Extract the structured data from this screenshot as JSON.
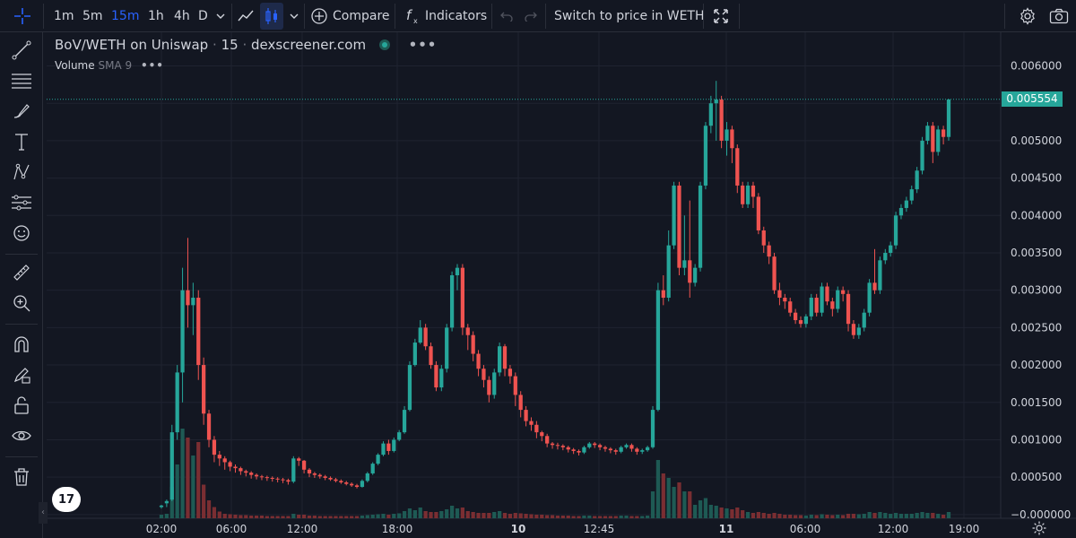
{
  "toolbar": {
    "intervals": [
      "1m",
      "5m",
      "15m",
      "1h",
      "4h",
      "D"
    ],
    "active_interval": "15m",
    "compare_label": "Compare",
    "indicators_label": "Indicators",
    "switch_label": "Switch to price in WETH"
  },
  "legend": {
    "symbol": "BoV/WETH on Uniswap",
    "interval": "15",
    "source": "dexscreener.com",
    "status_color": "#26a69a",
    "volume_label": "Volume",
    "volume_sma": "SMA 9"
  },
  "price_axis": {
    "ticks": [
      "0.006000",
      "0.005500",
      "0.005000",
      "0.004500",
      "0.004000",
      "0.003500",
      "0.003000",
      "0.002500",
      "0.002000",
      "0.001500",
      "0.001000",
      "0.000500",
      "−0.000000"
    ],
    "last_price": "0.005554",
    "last_price_color": "#26a69a"
  },
  "time_axis": {
    "labels": [
      "02:00",
      "06:00",
      "12:00",
      "18:00",
      "10",
      "12:45",
      "11",
      "06:00",
      "12:00",
      "19:00"
    ],
    "bold_labels": [
      "10",
      "11"
    ]
  },
  "colors": {
    "background": "#131722",
    "grid": "#1f2330",
    "up": "#26a69a",
    "down": "#ef5350",
    "volume_up": "#1e5a54",
    "volume_down": "#7a2e32",
    "accent": "#2962ff"
  },
  "left_tools": [
    "crosshair-icon",
    "trend-line-icon",
    "horizontal-lines-icon",
    "brush-icon",
    "text-icon",
    "pattern-icon",
    "prediction-icon",
    "emoji-icon",
    "ruler-icon",
    "zoom-in-icon",
    "magnet-icon",
    "lock-drawing-icon",
    "lock-icon",
    "eye-icon",
    "trash-icon"
  ],
  "logo_text": "17",
  "chart_data": {
    "type": "candlestick",
    "y_range": [
      -5e-05,
      0.00645
    ],
    "last_price": 0.005554,
    "candles": [
      [
        0.0001,
        0.00012,
        8e-05,
        0.00013,
        8
      ],
      [
        0.00015,
        0.00018,
        0.0001,
        0.0002,
        10
      ],
      [
        0.0002,
        0.0011,
        0.00018,
        0.0012,
        70
      ],
      [
        0.0011,
        0.0019,
        0.001,
        0.002,
        120
      ],
      [
        0.0019,
        0.003,
        0.0015,
        0.0033,
        200
      ],
      [
        0.003,
        0.0028,
        0.0025,
        0.0037,
        180
      ],
      [
        0.0028,
        0.0029,
        0.0024,
        0.0031,
        140
      ],
      [
        0.0029,
        0.002,
        0.0018,
        0.003,
        170
      ],
      [
        0.002,
        0.00135,
        0.0012,
        0.0021,
        75
      ],
      [
        0.00135,
        0.001,
        0.0009,
        0.0014,
        40
      ],
      [
        0.001,
        0.0008,
        0.0007,
        0.00105,
        25
      ],
      [
        0.0008,
        0.00075,
        0.00065,
        0.00085,
        15
      ],
      [
        0.00075,
        0.0007,
        0.0006,
        0.00078,
        10
      ],
      [
        0.0007,
        0.00064,
        0.00058,
        0.00072,
        9
      ],
      [
        0.00064,
        0.00062,
        0.00056,
        0.00067,
        8
      ],
      [
        0.00062,
        0.00058,
        0.00053,
        0.00064,
        7
      ],
      [
        0.00058,
        0.00056,
        0.00051,
        0.0006,
        7
      ],
      [
        0.00056,
        0.00053,
        0.00048,
        0.00058,
        6
      ],
      [
        0.00053,
        0.00051,
        0.00047,
        0.00055,
        6
      ],
      [
        0.00051,
        0.0005,
        0.00046,
        0.00053,
        6
      ],
      [
        0.0005,
        0.00049,
        0.00045,
        0.00052,
        5
      ],
      [
        0.00049,
        0.00048,
        0.00044,
        0.00051,
        5
      ],
      [
        0.00048,
        0.00047,
        0.00043,
        0.0005,
        5
      ],
      [
        0.00047,
        0.00046,
        0.00042,
        0.00049,
        5
      ],
      [
        0.00046,
        0.00044,
        0.0004,
        0.00048,
        5
      ],
      [
        0.00044,
        0.00075,
        0.00042,
        0.00078,
        10
      ],
      [
        0.00075,
        0.00072,
        0.00065,
        0.00077,
        8
      ],
      [
        0.00072,
        0.0006,
        0.00055,
        0.00073,
        8
      ],
      [
        0.0006,
        0.00055,
        0.0005,
        0.00062,
        6
      ],
      [
        0.00055,
        0.00053,
        0.00049,
        0.00057,
        6
      ],
      [
        0.00053,
        0.00051,
        0.00048,
        0.00055,
        5
      ],
      [
        0.00051,
        0.00049,
        0.00046,
        0.00053,
        5
      ],
      [
        0.00049,
        0.00047,
        0.00045,
        0.00051,
        5
      ],
      [
        0.00047,
        0.00045,
        0.00043,
        0.00049,
        5
      ],
      [
        0.00045,
        0.00043,
        0.00041,
        0.00047,
        5
      ],
      [
        0.00043,
        0.00041,
        0.00039,
        0.00045,
        5
      ],
      [
        0.00041,
        0.00039,
        0.00037,
        0.00043,
        5
      ],
      [
        0.00039,
        0.00037,
        0.00035,
        0.00041,
        5
      ],
      [
        0.00037,
        0.00045,
        0.00036,
        0.00047,
        6
      ],
      [
        0.00045,
        0.00055,
        0.00043,
        0.00057,
        7
      ],
      [
        0.00055,
        0.00068,
        0.00053,
        0.0007,
        8
      ],
      [
        0.00068,
        0.0008,
        0.00066,
        0.00082,
        9
      ],
      [
        0.0008,
        0.00095,
        0.00078,
        0.00098,
        10
      ],
      [
        0.00095,
        0.00085,
        0.0008,
        0.001,
        8
      ],
      [
        0.00085,
        0.001,
        0.00083,
        0.00103,
        10
      ],
      [
        0.001,
        0.0011,
        0.00098,
        0.00113,
        11
      ],
      [
        0.0011,
        0.0014,
        0.00108,
        0.00145,
        16
      ],
      [
        0.0014,
        0.002,
        0.00138,
        0.00205,
        22
      ],
      [
        0.002,
        0.0023,
        0.00198,
        0.00235,
        18
      ],
      [
        0.0023,
        0.0025,
        0.00228,
        0.0026,
        24
      ],
      [
        0.0025,
        0.00225,
        0.0022,
        0.00255,
        16
      ],
      [
        0.00225,
        0.002,
        0.00195,
        0.0023,
        14
      ],
      [
        0.002,
        0.0017,
        0.00165,
        0.00205,
        14
      ],
      [
        0.0017,
        0.00195,
        0.00165,
        0.002,
        16
      ],
      [
        0.00195,
        0.0025,
        0.0019,
        0.00255,
        20
      ],
      [
        0.0025,
        0.0032,
        0.00245,
        0.00325,
        28
      ],
      [
        0.0032,
        0.0033,
        0.003,
        0.00335,
        22
      ],
      [
        0.0033,
        0.0025,
        0.0024,
        0.00335,
        24
      ],
      [
        0.0025,
        0.0024,
        0.0022,
        0.00255,
        16
      ],
      [
        0.0024,
        0.00215,
        0.00205,
        0.00245,
        14
      ],
      [
        0.00215,
        0.00195,
        0.00185,
        0.0022,
        12
      ],
      [
        0.00195,
        0.0018,
        0.0017,
        0.002,
        12
      ],
      [
        0.0018,
        0.0016,
        0.0015,
        0.00185,
        12
      ],
      [
        0.0016,
        0.0019,
        0.00155,
        0.00195,
        14
      ],
      [
        0.0019,
        0.00225,
        0.00185,
        0.0023,
        16
      ],
      [
        0.00225,
        0.00195,
        0.00185,
        0.00228,
        12
      ],
      [
        0.00195,
        0.00185,
        0.00175,
        0.002,
        10
      ],
      [
        0.00185,
        0.0016,
        0.00145,
        0.0019,
        12
      ],
      [
        0.0016,
        0.0014,
        0.0013,
        0.00165,
        11
      ],
      [
        0.0014,
        0.00125,
        0.00118,
        0.00145,
        10
      ],
      [
        0.00125,
        0.0012,
        0.00112,
        0.0013,
        9
      ],
      [
        0.0012,
        0.0011,
        0.00102,
        0.00125,
        8
      ],
      [
        0.0011,
        0.00105,
        0.00098,
        0.00112,
        8
      ],
      [
        0.00105,
        0.00095,
        0.0009,
        0.00108,
        7
      ],
      [
        0.00095,
        0.00093,
        0.00088,
        0.00097,
        7
      ],
      [
        0.00093,
        0.00092,
        0.00087,
        0.00096,
        6
      ],
      [
        0.00092,
        0.0009,
        0.00086,
        0.00094,
        6
      ],
      [
        0.0009,
        0.00087,
        0.00083,
        0.00092,
        6
      ],
      [
        0.00087,
        0.00085,
        0.00081,
        0.00089,
        5
      ],
      [
        0.00085,
        0.00083,
        0.00079,
        0.00087,
        5
      ],
      [
        0.00083,
        0.0009,
        0.00081,
        0.00092,
        6
      ],
      [
        0.0009,
        0.00095,
        0.00088,
        0.00097,
        6
      ],
      [
        0.00095,
        0.00093,
        0.00089,
        0.00097,
        5
      ],
      [
        0.00093,
        0.0009,
        0.00086,
        0.00095,
        5
      ],
      [
        0.0009,
        0.00088,
        0.00084,
        0.00092,
        5
      ],
      [
        0.00088,
        0.00086,
        0.00082,
        0.0009,
        5
      ],
      [
        0.00086,
        0.00084,
        0.0008,
        0.00088,
        5
      ],
      [
        0.00084,
        0.0009,
        0.00082,
        0.00092,
        6
      ],
      [
        0.0009,
        0.00093,
        0.00088,
        0.00095,
        6
      ],
      [
        0.00093,
        0.00088,
        0.00084,
        0.00095,
        5
      ],
      [
        0.00088,
        0.00084,
        0.0008,
        0.0009,
        5
      ],
      [
        0.00084,
        0.00086,
        0.00081,
        0.00088,
        5
      ],
      [
        0.00086,
        0.0009,
        0.00084,
        0.00092,
        6
      ],
      [
        0.0009,
        0.0014,
        0.00088,
        0.00145,
        60
      ],
      [
        0.0014,
        0.003,
        0.00138,
        0.0031,
        130
      ],
      [
        0.003,
        0.0029,
        0.0028,
        0.0032,
        100
      ],
      [
        0.0029,
        0.0036,
        0.00285,
        0.0038,
        90
      ],
      [
        0.0036,
        0.0044,
        0.00355,
        0.00445,
        70
      ],
      [
        0.0044,
        0.0033,
        0.0032,
        0.00445,
        80
      ],
      [
        0.0033,
        0.0034,
        0.0032,
        0.004,
        60
      ],
      [
        0.0034,
        0.0031,
        0.0029,
        0.0042,
        60
      ],
      [
        0.0031,
        0.0033,
        0.00305,
        0.00335,
        30
      ],
      [
        0.0033,
        0.0044,
        0.00325,
        0.00445,
        40
      ],
      [
        0.0044,
        0.0052,
        0.00435,
        0.00525,
        45
      ],
      [
        0.0052,
        0.0055,
        0.0051,
        0.0056,
        30
      ],
      [
        0.0055,
        0.00555,
        0.005,
        0.0058,
        28
      ],
      [
        0.00555,
        0.005,
        0.0049,
        0.0056,
        24
      ],
      [
        0.005,
        0.00515,
        0.0048,
        0.00525,
        22
      ],
      [
        0.00515,
        0.0049,
        0.0047,
        0.0052,
        20
      ],
      [
        0.0049,
        0.0044,
        0.0043,
        0.00495,
        24
      ],
      [
        0.0044,
        0.00415,
        0.0041,
        0.00445,
        18
      ],
      [
        0.00415,
        0.0044,
        0.0041,
        0.00445,
        14
      ],
      [
        0.0044,
        0.00425,
        0.0041,
        0.00445,
        12
      ],
      [
        0.00425,
        0.0038,
        0.00375,
        0.0043,
        14
      ],
      [
        0.0038,
        0.0036,
        0.0035,
        0.00385,
        12
      ],
      [
        0.0036,
        0.00345,
        0.00335,
        0.00365,
        10
      ],
      [
        0.00345,
        0.003,
        0.00295,
        0.0035,
        12
      ],
      [
        0.003,
        0.0029,
        0.0028,
        0.0031,
        10
      ],
      [
        0.0029,
        0.00285,
        0.00275,
        0.00295,
        8
      ],
      [
        0.00285,
        0.0027,
        0.00265,
        0.0029,
        8
      ],
      [
        0.0027,
        0.0026,
        0.00255,
        0.00275,
        7
      ],
      [
        0.0026,
        0.00255,
        0.0025,
        0.00265,
        7
      ],
      [
        0.00255,
        0.00265,
        0.0025,
        0.00268,
        6
      ],
      [
        0.00265,
        0.0029,
        0.0026,
        0.00295,
        8
      ],
      [
        0.0029,
        0.0027,
        0.00265,
        0.00295,
        7
      ],
      [
        0.0027,
        0.00305,
        0.00265,
        0.0031,
        9
      ],
      [
        0.00305,
        0.00285,
        0.0028,
        0.0031,
        8
      ],
      [
        0.00285,
        0.00275,
        0.00265,
        0.0029,
        7
      ],
      [
        0.00275,
        0.003,
        0.0027,
        0.00305,
        8
      ],
      [
        0.003,
        0.00295,
        0.00285,
        0.00305,
        7
      ],
      [
        0.00295,
        0.00255,
        0.00245,
        0.003,
        10
      ],
      [
        0.00255,
        0.0024,
        0.00235,
        0.0026,
        10
      ],
      [
        0.0024,
        0.0025,
        0.00235,
        0.00255,
        9
      ],
      [
        0.0025,
        0.0027,
        0.00245,
        0.00275,
        10
      ],
      [
        0.0027,
        0.0031,
        0.00265,
        0.00315,
        14
      ],
      [
        0.0031,
        0.003,
        0.00295,
        0.00355,
        12
      ],
      [
        0.003,
        0.0034,
        0.00295,
        0.00345,
        14
      ],
      [
        0.0034,
        0.0035,
        0.00335,
        0.00355,
        12
      ],
      [
        0.0035,
        0.0036,
        0.00345,
        0.00365,
        10
      ],
      [
        0.0036,
        0.004,
        0.00355,
        0.00405,
        12
      ],
      [
        0.004,
        0.0041,
        0.00395,
        0.00415,
        10
      ],
      [
        0.0041,
        0.0042,
        0.00405,
        0.00425,
        10
      ],
      [
        0.0042,
        0.00435,
        0.00415,
        0.0044,
        10
      ],
      [
        0.00435,
        0.0046,
        0.0043,
        0.00465,
        12
      ],
      [
        0.0046,
        0.005,
        0.00455,
        0.00505,
        14
      ],
      [
        0.005,
        0.0052,
        0.00495,
        0.00525,
        12
      ],
      [
        0.0052,
        0.00485,
        0.0047,
        0.00525,
        12
      ],
      [
        0.00485,
        0.00515,
        0.0048,
        0.0052,
        10
      ],
      [
        0.00515,
        0.00505,
        0.00495,
        0.0052,
        8
      ],
      [
        0.00505,
        0.00555,
        0.005,
        0.00556,
        14
      ]
    ]
  }
}
